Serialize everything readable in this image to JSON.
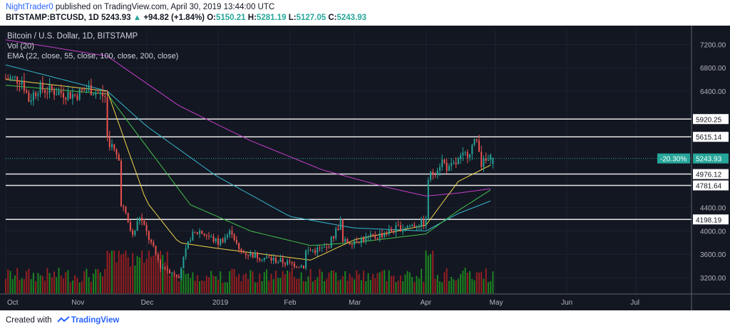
{
  "header": {
    "author": "NightTrader0",
    "published_text": "published on TradingView.com, April 30, 2019 13:44:00 UTC",
    "symbol": "BITSTAMP:BTCUSD, 1D",
    "last_price": "5243.93",
    "change": "+94.82 (+1.84%)",
    "open_label": "O:",
    "open": "5150.21",
    "high_label": "H:",
    "high": "5281.19",
    "low_label": "L:",
    "low": "5127.05",
    "close_label": "C:",
    "close": "5243.93"
  },
  "legend": {
    "title": "Bitcoin / U.S. Dollar, 1D, BITSTAMP",
    "vol": "Vol (20)",
    "ema": "EMA (22, close, 55, close, 100, close, 200, close)"
  },
  "footer": {
    "created_with": "Created with",
    "brand": "TradingView"
  },
  "colors": {
    "background": "#131722",
    "up_candle": "#26a69a",
    "down_candle": "#ef5350",
    "volume_up": "#1f9a1f",
    "volume_down": "#b02020",
    "ema22": "#f0d44a",
    "ema55": "#43c24b",
    "ema100": "#35b8d0",
    "ema200": "#c33ec9",
    "level_line": "#e6e6e6",
    "price_tag": "#26a69a"
  },
  "chart_data": {
    "type": "candlestick",
    "symbol": "BTCUSD",
    "timeframe": "1D",
    "x_tick_labels": [
      "Oct",
      "Nov",
      "Dec",
      "2019",
      "Feb",
      "Mar",
      "Apr",
      "May",
      "Jun",
      "Jul"
    ],
    "y_tick_labels": [
      7200,
      6800,
      6400,
      4400,
      4000,
      3600,
      3200
    ],
    "ylim": [
      2980,
      7450
    ],
    "horizontal_levels": [
      5920.25,
      5615.14,
      4976.12,
      4781.64,
      4198.19
    ],
    "last_price_tag": {
      "label": "-20.30%",
      "value": "5243.93"
    },
    "series_names": [
      "EMA 22",
      "EMA 55",
      "EMA 100",
      "EMA 200",
      "Vol (20)"
    ],
    "price_anchors": [
      {
        "date": "2018-10-01",
        "close": 6620
      },
      {
        "date": "2018-10-08",
        "close": 6600
      },
      {
        "date": "2018-10-11",
        "close": 6250
      },
      {
        "date": "2018-10-15",
        "close": 6450
      },
      {
        "date": "2018-10-31",
        "close": 6330
      },
      {
        "date": "2018-11-06",
        "close": 6450
      },
      {
        "date": "2018-11-13",
        "close": 6300
      },
      {
        "date": "2018-11-14",
        "close": 5600
      },
      {
        "date": "2018-11-19",
        "close": 5200
      },
      {
        "date": "2018-11-20",
        "close": 4500
      },
      {
        "date": "2018-11-25",
        "close": 3900
      },
      {
        "date": "2018-11-28",
        "close": 4250
      },
      {
        "date": "2018-12-07",
        "close": 3400
      },
      {
        "date": "2018-12-15",
        "close": 3250
      },
      {
        "date": "2018-12-20",
        "close": 3900
      },
      {
        "date": "2018-12-24",
        "close": 4000
      },
      {
        "date": "2019-01-01",
        "close": 3800
      },
      {
        "date": "2019-01-07",
        "close": 4000
      },
      {
        "date": "2019-01-10",
        "close": 3650
      },
      {
        "date": "2019-01-20",
        "close": 3550
      },
      {
        "date": "2019-01-31",
        "close": 3450
      },
      {
        "date": "2019-02-07",
        "close": 3400
      },
      {
        "date": "2019-02-08",
        "close": 3650
      },
      {
        "date": "2019-02-17",
        "close": 3700
      },
      {
        "date": "2019-02-23",
        "close": 4150
      },
      {
        "date": "2019-02-24",
        "close": 3800
      },
      {
        "date": "2019-03-10",
        "close": 3900
      },
      {
        "date": "2019-03-20",
        "close": 4050
      },
      {
        "date": "2019-04-01",
        "close": 4150
      },
      {
        "date": "2019-04-02",
        "close": 4900
      },
      {
        "date": "2019-04-08",
        "close": 5200
      },
      {
        "date": "2019-04-11",
        "close": 5050
      },
      {
        "date": "2019-04-18",
        "close": 5300
      },
      {
        "date": "2019-04-23",
        "close": 5550
      },
      {
        "date": "2019-04-24",
        "close": 5450
      },
      {
        "date": "2019-04-25",
        "close": 5150
      },
      {
        "date": "2019-04-30",
        "close": 5243.93
      }
    ],
    "ema_anchors": {
      "ema22": [
        {
          "date": "2018-10-01",
          "value": 6600
        },
        {
          "date": "2018-11-14",
          "value": 6400
        },
        {
          "date": "2018-11-22",
          "value": 5500
        },
        {
          "date": "2018-12-01",
          "value": 4500
        },
        {
          "date": "2018-12-15",
          "value": 3800
        },
        {
          "date": "2019-01-01",
          "value": 3700
        },
        {
          "date": "2019-02-10",
          "value": 3500
        },
        {
          "date": "2019-03-01",
          "value": 3850
        },
        {
          "date": "2019-04-01",
          "value": 4100
        },
        {
          "date": "2019-04-15",
          "value": 4850
        },
        {
          "date": "2019-04-30",
          "value": 5150
        }
      ],
      "ema55": [
        {
          "date": "2018-10-01",
          "value": 6500
        },
        {
          "date": "2018-11-14",
          "value": 6350
        },
        {
          "date": "2018-12-01",
          "value": 5450
        },
        {
          "date": "2018-12-20",
          "value": 4450
        },
        {
          "date": "2019-01-15",
          "value": 4000
        },
        {
          "date": "2019-02-10",
          "value": 3750
        },
        {
          "date": "2019-03-01",
          "value": 3800
        },
        {
          "date": "2019-04-01",
          "value": 3950
        },
        {
          "date": "2019-04-15",
          "value": 4350
        },
        {
          "date": "2019-04-30",
          "value": 4730
        }
      ],
      "ema100": [
        {
          "date": "2018-10-01",
          "value": 6850
        },
        {
          "date": "2018-11-14",
          "value": 6400
        },
        {
          "date": "2018-12-01",
          "value": 5800
        },
        {
          "date": "2018-12-31",
          "value": 4950
        },
        {
          "date": "2019-02-01",
          "value": 4250
        },
        {
          "date": "2019-03-01",
          "value": 4050
        },
        {
          "date": "2019-04-01",
          "value": 4000
        },
        {
          "date": "2019-04-15",
          "value": 4300
        },
        {
          "date": "2019-04-30",
          "value": 4530
        }
      ],
      "ema200": [
        {
          "date": "2018-10-01",
          "value": 7280
        },
        {
          "date": "2018-11-14",
          "value": 7000
        },
        {
          "date": "2018-12-15",
          "value": 6150
        },
        {
          "date": "2019-01-15",
          "value": 5550
        },
        {
          "date": "2019-02-15",
          "value": 5050
        },
        {
          "date": "2019-03-15",
          "value": 4750
        },
        {
          "date": "2019-04-01",
          "value": 4600
        },
        {
          "date": "2019-04-15",
          "value": 4650
        },
        {
          "date": "2019-04-30",
          "value": 4730
        }
      ]
    }
  }
}
